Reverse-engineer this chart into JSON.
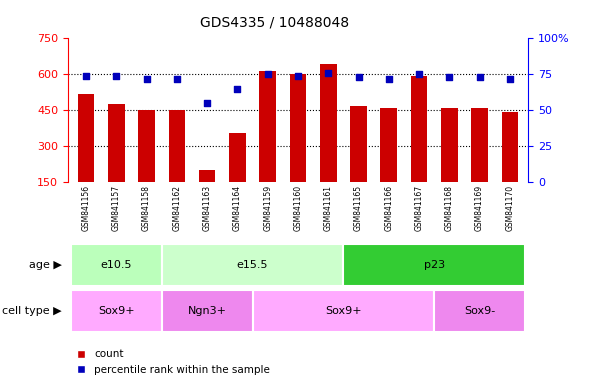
{
  "title": "GDS4335 / 10488048",
  "samples": [
    "GSM841156",
    "GSM841157",
    "GSM841158",
    "GSM841162",
    "GSM841163",
    "GSM841164",
    "GSM841159",
    "GSM841160",
    "GSM841161",
    "GSM841165",
    "GSM841166",
    "GSM841167",
    "GSM841168",
    "GSM841169",
    "GSM841170"
  ],
  "counts": [
    520,
    475,
    453,
    453,
    200,
    355,
    615,
    600,
    645,
    470,
    460,
    595,
    462,
    458,
    445
  ],
  "percentiles": [
    74,
    74,
    72,
    72,
    55,
    65,
    75,
    74,
    76,
    73,
    72,
    75,
    73,
    73,
    72
  ],
  "ylim_left": [
    150,
    750
  ],
  "ylim_right": [
    0,
    100
  ],
  "yticks_left": [
    150,
    300,
    450,
    600,
    750
  ],
  "yticks_right": [
    0,
    25,
    50,
    75,
    100
  ],
  "bar_color": "#cc0000",
  "dot_color": "#0000bb",
  "age_groups": [
    {
      "label": "e10.5",
      "start": 0,
      "end": 3,
      "color": "#bbffbb"
    },
    {
      "label": "e15.5",
      "start": 3,
      "end": 9,
      "color": "#ccffcc"
    },
    {
      "label": "p23",
      "start": 9,
      "end": 15,
      "color": "#33cc33"
    }
  ],
  "cell_type_groups": [
    {
      "label": "Sox9+",
      "start": 0,
      "end": 3,
      "color": "#ffaaff"
    },
    {
      "label": "Ngn3+",
      "start": 3,
      "end": 6,
      "color": "#ee88ee"
    },
    {
      "label": "Sox9+",
      "start": 6,
      "end": 12,
      "color": "#ffaaff"
    },
    {
      "label": "Sox9-",
      "start": 12,
      "end": 15,
      "color": "#ee88ee"
    }
  ],
  "age_label": "age",
  "cell_type_label": "cell type",
  "legend_count_label": "count",
  "legend_pct_label": "percentile rank within the sample",
  "bg_color": "#ffffff",
  "xticklabel_bg": "#cccccc",
  "grid_yticks": [
    300,
    450,
    600
  ]
}
